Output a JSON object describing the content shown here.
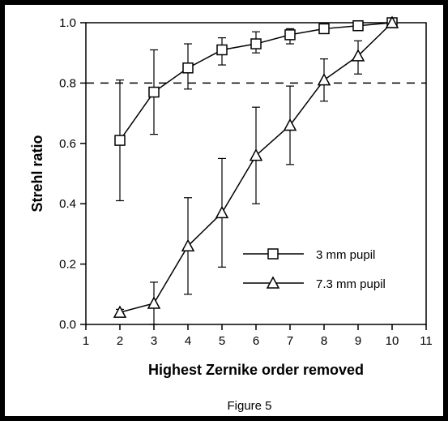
{
  "chart_data": {
    "type": "line",
    "xlabel": "Highest Zernike order removed",
    "ylabel": "Strehl ratio",
    "caption": "Figure 5",
    "xlim": [
      1,
      11
    ],
    "ylim": [
      0,
      1
    ],
    "xticks": [
      1,
      2,
      3,
      4,
      5,
      6,
      7,
      8,
      9,
      10,
      11
    ],
    "yticks": [
      0.0,
      0.2,
      0.4,
      0.6,
      0.8,
      1.0
    ],
    "ytick_labels": [
      "0.0",
      "0.2",
      "0.4",
      "0.6",
      "0.8",
      "1.0"
    ],
    "grid": false,
    "reference_line": {
      "y": 0.8,
      "style": "dashed"
    },
    "legend_position": "lower-right",
    "series": [
      {
        "name": "3 mm pupil",
        "marker": "square",
        "x": [
          2,
          3,
          4,
          5,
          6,
          7,
          8,
          9,
          10
        ],
        "values": [
          0.61,
          0.77,
          0.85,
          0.91,
          0.93,
          0.96,
          0.98,
          0.99,
          1.0
        ],
        "err_low": [
          0.41,
          0.63,
          0.78,
          0.86,
          0.9,
          0.93,
          0.97,
          0.98,
          1.0
        ],
        "err_high": [
          0.81,
          0.91,
          0.93,
          0.95,
          0.97,
          0.98,
          0.99,
          1.0,
          1.0
        ]
      },
      {
        "name": "7.3 mm pupil",
        "marker": "triangle",
        "x": [
          2,
          3,
          4,
          5,
          6,
          7,
          8,
          9,
          10
        ],
        "values": [
          0.04,
          0.07,
          0.26,
          0.37,
          0.56,
          0.66,
          0.81,
          0.89,
          1.0
        ],
        "err_low": [
          0.03,
          0.0,
          0.1,
          0.19,
          0.4,
          0.53,
          0.74,
          0.83,
          1.0
        ],
        "err_high": [
          0.05,
          0.14,
          0.42,
          0.55,
          0.72,
          0.79,
          0.88,
          0.94,
          1.0
        ]
      }
    ]
  }
}
